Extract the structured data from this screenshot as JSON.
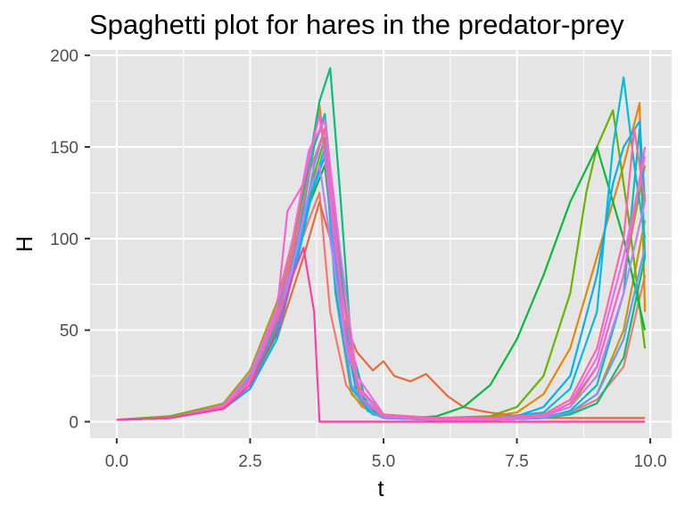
{
  "chart_data": {
    "type": "line",
    "title": "Spaghetti plot for hares in the predator-prey",
    "xlabel": "t",
    "ylabel": "H",
    "xlim": [
      -0.5,
      10.4
    ],
    "ylim": [
      -9,
      203
    ],
    "x_ticks": [
      "0.0",
      "2.5",
      "5.0",
      "7.5",
      "10.0"
    ],
    "y_ticks": [
      "0",
      "50",
      "100",
      "150",
      "200"
    ],
    "grid": true,
    "legend": "none",
    "panel_background": "#E5E5E5",
    "grid_color": "#FFFFFF",
    "series": [
      {
        "color": "#F8766D",
        "x": [
          0,
          1,
          2,
          2.5,
          3,
          3.3,
          3.6,
          3.8,
          4.0,
          4.3,
          4.6,
          5.0,
          5.5,
          6.0,
          6.5,
          7.0,
          7.5,
          8.0,
          8.5,
          9.0,
          9.5,
          9.9
        ],
        "y": [
          1,
          2,
          8,
          22,
          55,
          85,
          110,
          125,
          60,
          20,
          8,
          3,
          2,
          2,
          2,
          2,
          2,
          3,
          5,
          12,
          30,
          80
        ]
      },
      {
        "color": "#E58700",
        "x": [
          0,
          1,
          2,
          2.5,
          3,
          3.3,
          3.6,
          3.8,
          4.0,
          4.3,
          4.6,
          5.0,
          5.5,
          6.0,
          6.5,
          7.0,
          7.5,
          8.0,
          8.5,
          9.0,
          9.5,
          9.8,
          9.9
        ],
        "y": [
          1,
          2,
          9,
          25,
          60,
          95,
          140,
          173,
          120,
          40,
          10,
          3,
          2,
          2,
          2,
          3,
          5,
          15,
          40,
          90,
          140,
          174,
          60
        ]
      },
      {
        "color": "#E76B3A",
        "x": [
          0,
          1,
          2,
          2.5,
          3,
          3.5,
          3.8,
          4.0,
          4.2,
          4.5,
          4.8,
          5.0,
          5.2,
          5.5,
          5.8,
          6.0,
          6.2,
          6.5,
          6.8,
          7.0,
          7.5,
          8.0,
          9.0,
          9.9
        ],
        "y": [
          1,
          2,
          7,
          18,
          45,
          90,
          120,
          100,
          60,
          38,
          28,
          33,
          25,
          22,
          26,
          20,
          14,
          8,
          6,
          5,
          3,
          2,
          2,
          2
        ]
      },
      {
        "color": "#C99800",
        "x": [
          0,
          1,
          2,
          2.5,
          3,
          3.4,
          3.7,
          3.9,
          4.1,
          4.4,
          4.8,
          5.2,
          6.0,
          7.0,
          8.0,
          8.5,
          9.0,
          9.5,
          9.9
        ],
        "y": [
          1,
          2,
          8,
          20,
          50,
          90,
          130,
          150,
          70,
          15,
          4,
          2,
          1,
          1,
          2,
          5,
          15,
          50,
          110
        ]
      },
      {
        "color": "#A3A500",
        "x": [
          0,
          1,
          2,
          2.5,
          3,
          3.3,
          3.6,
          3.9,
          4.2,
          4.5,
          4.8,
          5.2,
          6.0,
          7.0,
          8.0,
          8.5,
          9.0,
          9.5,
          9.9
        ],
        "y": [
          1,
          3,
          10,
          28,
          65,
          100,
          145,
          165,
          80,
          20,
          5,
          2,
          1,
          1,
          3,
          8,
          30,
          80,
          140
        ]
      },
      {
        "color": "#6BB100",
        "x": [
          0,
          1,
          2,
          2.5,
          3,
          3.4,
          3.7,
          3.9,
          4.1,
          4.4,
          4.8,
          5.2,
          6.0,
          7.0,
          7.5,
          8.0,
          8.5,
          8.8,
          9.0,
          9.3,
          9.6,
          9.9
        ],
        "y": [
          1,
          3,
          9,
          24,
          58,
          95,
          135,
          155,
          75,
          18,
          5,
          2,
          2,
          3,
          8,
          25,
          70,
          125,
          150,
          170,
          110,
          40
        ]
      },
      {
        "color": "#00BA38",
        "x": [
          0,
          1,
          2,
          2.5,
          3,
          3.3,
          3.6,
          3.9,
          4.2,
          4.5,
          5.0,
          5.5,
          6.0,
          6.5,
          7.0,
          7.5,
          8.0,
          8.5,
          9.0,
          9.5,
          9.9
        ],
        "y": [
          1,
          2,
          7,
          20,
          48,
          80,
          118,
          140,
          60,
          15,
          3,
          2,
          3,
          8,
          20,
          45,
          80,
          120,
          150,
          100,
          50
        ]
      },
      {
        "color": "#00BF7D",
        "x": [
          0,
          1,
          2,
          2.5,
          3,
          3.3,
          3.6,
          3.8,
          4.0,
          4.2,
          4.4,
          4.7,
          5.0,
          6.0,
          7.0,
          8.0,
          8.5,
          9.0,
          9.5,
          9.9
        ],
        "y": [
          1,
          2,
          8,
          22,
          55,
          90,
          140,
          175,
          193,
          120,
          40,
          8,
          2,
          1,
          1,
          2,
          4,
          10,
          35,
          90
        ]
      },
      {
        "color": "#00C0AF",
        "x": [
          0,
          1,
          2,
          2.5,
          3,
          3.4,
          3.7,
          3.9,
          4.1,
          4.4,
          4.7,
          5.0,
          6.0,
          7.0,
          8.0,
          8.5,
          9.0,
          9.5,
          9.8,
          9.9
        ],
        "y": [
          1,
          2,
          9,
          25,
          60,
          100,
          150,
          168,
          110,
          30,
          6,
          2,
          1,
          1,
          2,
          6,
          20,
          70,
          160,
          90
        ]
      },
      {
        "color": "#00BCD8",
        "x": [
          0,
          1,
          2,
          2.5,
          3,
          3.4,
          3.7,
          3.9,
          4.1,
          4.4,
          4.8,
          5.2,
          6.0,
          7.0,
          8.0,
          8.5,
          9.0,
          9.3,
          9.5,
          9.7,
          9.9
        ],
        "y": [
          1,
          2,
          8,
          22,
          52,
          90,
          130,
          150,
          70,
          18,
          4,
          2,
          1,
          2,
          5,
          18,
          60,
          150,
          188,
          140,
          100
        ]
      },
      {
        "color": "#00B0F6",
        "x": [
          0,
          1,
          2,
          2.5,
          3,
          3.3,
          3.6,
          3.9,
          4.2,
          4.5,
          5.0,
          5.5,
          6.5,
          7.5,
          8.0,
          8.5,
          9.0,
          9.3,
          9.5,
          9.8,
          9.9
        ],
        "y": [
          1,
          2,
          7,
          18,
          45,
          80,
          120,
          145,
          65,
          15,
          3,
          2,
          2,
          3,
          8,
          25,
          80,
          130,
          150,
          164,
          120
        ]
      },
      {
        "color": "#619CFF",
        "x": [
          0,
          1,
          2,
          2.5,
          3,
          3.4,
          3.7,
          3.9,
          4.1,
          4.4,
          4.8,
          5.0,
          6.0,
          7.0,
          8.0,
          8.5,
          9.0,
          9.5,
          9.9
        ],
        "y": [
          1,
          2,
          8,
          24,
          58,
          95,
          140,
          160,
          80,
          20,
          5,
          2,
          1,
          1,
          2,
          5,
          15,
          45,
          95
        ]
      },
      {
        "color": "#B983FF",
        "x": [
          0,
          1,
          2,
          2.5,
          3,
          3.3,
          3.6,
          3.8,
          4.0,
          4.3,
          4.6,
          5.0,
          5.5,
          6.0,
          7.0,
          8.0,
          8.5,
          9.0,
          9.5,
          9.9
        ],
        "y": [
          1,
          2,
          7,
          20,
          50,
          85,
          125,
          140,
          100,
          40,
          15,
          4,
          2,
          2,
          2,
          3,
          8,
          25,
          70,
          120
        ]
      },
      {
        "color": "#E76BF3",
        "x": [
          0,
          1,
          2,
          2.5,
          3,
          3.3,
          3.6,
          3.9,
          4.2,
          4.5,
          5.0,
          6.0,
          7.0,
          8.0,
          8.5,
          9.0,
          9.5,
          9.9
        ],
        "y": [
          1,
          2,
          9,
          26,
          62,
          100,
          148,
          165,
          90,
          25,
          4,
          1,
          1,
          3,
          10,
          35,
          90,
          145
        ]
      },
      {
        "color": "#FD61D1",
        "x": [
          0,
          1,
          2,
          2.5,
          3,
          3.2,
          3.5,
          3.8,
          4.0,
          4.3,
          4.6,
          5.0,
          5.5,
          6.0,
          7.0,
          8.0,
          8.5,
          9.0,
          9.5,
          9.9
        ],
        "y": [
          1,
          2,
          8,
          22,
          60,
          115,
          130,
          168,
          120,
          45,
          12,
          3,
          2,
          2,
          2,
          3,
          10,
          30,
          80,
          150
        ]
      },
      {
        "color": "#FF67A4",
        "x": [
          0,
          1,
          2,
          2.5,
          3,
          3.3,
          3.6,
          3.9,
          4.2,
          4.5,
          5.0,
          6.0,
          7.0,
          8.0,
          8.5,
          9.0,
          9.5,
          9.7,
          9.9
        ],
        "y": [
          1,
          2,
          8,
          23,
          56,
          92,
          135,
          160,
          75,
          20,
          4,
          2,
          2,
          4,
          12,
          40,
          100,
          160,
          120
        ]
      },
      {
        "color": "#FF3FA4",
        "x": [
          0,
          1,
          2,
          2.5,
          3,
          3.3,
          3.5,
          3.7,
          3.8,
          4.0,
          4.5,
          5.0,
          6.0,
          7.0,
          8.0,
          9.0,
          9.5,
          9.9
        ],
        "y": [
          1,
          2,
          7,
          20,
          50,
          80,
          95,
          60,
          0,
          0,
          0,
          0,
          0,
          0,
          0,
          0,
          0,
          0
        ]
      }
    ]
  }
}
